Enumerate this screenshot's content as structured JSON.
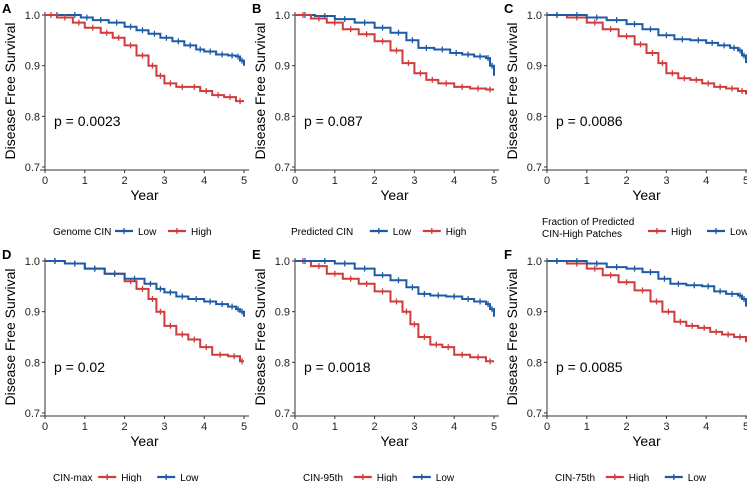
{
  "figure": {
    "colors": {
      "low": "#1f5aa6",
      "high": "#d13b3b"
    }
  },
  "chart_data": [
    {
      "type": "line",
      "panel": "A",
      "title": "",
      "xlabel": "Year",
      "ylabel": "Disease Free Survival",
      "xlim": [
        0,
        5
      ],
      "ylim": [
        0.7,
        1.0
      ],
      "xticks": [
        "0",
        "1",
        "2",
        "3",
        "4",
        "5"
      ],
      "yticks": [
        "0.7",
        "0.8",
        "0.9",
        "1.0"
      ],
      "p_value": "p = 0.0023",
      "legend_title": "Genome CIN",
      "series": [
        {
          "name": "Low",
          "color": "#1f5aa6",
          "x": [
            0,
            0.6,
            0.9,
            1.2,
            1.6,
            2.0,
            2.3,
            2.6,
            2.9,
            3.2,
            3.5,
            3.8,
            4.0,
            4.3,
            4.6,
            4.8,
            4.9,
            5.0
          ],
          "y": [
            1.0,
            1.0,
            0.995,
            0.99,
            0.985,
            0.977,
            0.97,
            0.963,
            0.955,
            0.948,
            0.94,
            0.932,
            0.928,
            0.922,
            0.92,
            0.918,
            0.91,
            0.9
          ]
        },
        {
          "name": "High",
          "color": "#d13b3b",
          "x": [
            0,
            0.3,
            0.7,
            1.0,
            1.4,
            1.7,
            2.0,
            2.3,
            2.6,
            2.8,
            3.0,
            3.3,
            3.6,
            3.9,
            4.2,
            4.5,
            4.8,
            5.0
          ],
          "y": [
            1.0,
            0.995,
            0.985,
            0.975,
            0.965,
            0.955,
            0.94,
            0.92,
            0.9,
            0.88,
            0.865,
            0.858,
            0.858,
            0.85,
            0.842,
            0.838,
            0.83,
            0.83
          ]
        }
      ]
    },
    {
      "type": "line",
      "panel": "B",
      "title": "",
      "xlabel": "Year",
      "ylabel": "Disease Free Survival",
      "xlim": [
        0,
        5
      ],
      "ylim": [
        0.7,
        1.0
      ],
      "xticks": [
        "0",
        "1",
        "2",
        "3",
        "4",
        "5"
      ],
      "yticks": [
        "0.7",
        "0.8",
        "0.9",
        "1.0"
      ],
      "p_value": "p = 0.087",
      "legend_title": "Predicted CIN",
      "series": [
        {
          "name": "Low",
          "color": "#1f5aa6",
          "x": [
            0,
            0.5,
            1.0,
            1.5,
            2.0,
            2.4,
            2.8,
            3.1,
            3.5,
            3.9,
            4.2,
            4.5,
            4.8,
            4.9,
            5.0
          ],
          "y": [
            1.0,
            0.998,
            0.992,
            0.985,
            0.975,
            0.965,
            0.95,
            0.935,
            0.932,
            0.925,
            0.922,
            0.918,
            0.915,
            0.9,
            0.88
          ]
        },
        {
          "name": "High",
          "color": "#d13b3b",
          "x": [
            0,
            0.4,
            0.8,
            1.2,
            1.6,
            2.0,
            2.4,
            2.7,
            3.0,
            3.3,
            3.6,
            4.0,
            4.4,
            4.8,
            5.0
          ],
          "y": [
            1.0,
            0.993,
            0.985,
            0.972,
            0.962,
            0.948,
            0.93,
            0.905,
            0.885,
            0.872,
            0.865,
            0.858,
            0.855,
            0.853,
            0.853
          ]
        }
      ]
    },
    {
      "type": "line",
      "panel": "C",
      "title": "",
      "xlabel": "Year",
      "ylabel": "Disease Free Survival",
      "xlim": [
        0,
        5
      ],
      "ylim": [
        0.7,
        1.0
      ],
      "xticks": [
        "0",
        "1",
        "2",
        "3",
        "4",
        "5"
      ],
      "yticks": [
        "0.7",
        "0.8",
        "0.9",
        "1.0"
      ],
      "p_value": "p = 0.0086",
      "legend_title": "Fraction of Predicted CIN-High Patches",
      "legend_title_lines": [
        "Fraction of Predicted",
        "CIN-High Patches"
      ],
      "series": [
        {
          "name": "High",
          "color": "#d13b3b",
          "x": [
            0,
            0.5,
            1.0,
            1.4,
            1.8,
            2.2,
            2.5,
            2.8,
            3.0,
            3.3,
            3.6,
            3.9,
            4.2,
            4.5,
            4.8,
            5.0
          ],
          "y": [
            1.0,
            0.995,
            0.985,
            0.972,
            0.958,
            0.942,
            0.925,
            0.905,
            0.885,
            0.875,
            0.872,
            0.865,
            0.858,
            0.855,
            0.85,
            0.843
          ]
        },
        {
          "name": "Low",
          "color": "#1f5aa6",
          "x": [
            0,
            0.5,
            1.0,
            1.5,
            2.0,
            2.4,
            2.8,
            3.2,
            3.6,
            4.0,
            4.3,
            4.6,
            4.8,
            4.9,
            5.0
          ],
          "y": [
            1.0,
            1.0,
            0.995,
            0.99,
            0.982,
            0.972,
            0.96,
            0.952,
            0.95,
            0.945,
            0.94,
            0.935,
            0.93,
            0.92,
            0.905
          ]
        }
      ]
    },
    {
      "type": "line",
      "panel": "D",
      "title": "",
      "xlabel": "Year",
      "ylabel": "Disease Free Survival",
      "xlim": [
        0,
        5
      ],
      "ylim": [
        0.7,
        1.0
      ],
      "xticks": [
        "0",
        "1",
        "2",
        "3",
        "4",
        "5"
      ],
      "yticks": [
        "0.7",
        "0.8",
        "0.9",
        "1.0"
      ],
      "p_value": "p = 0.02",
      "legend_title": "CIN-max",
      "series": [
        {
          "name": "High",
          "color": "#d13b3b",
          "x": [
            0,
            0.5,
            1.0,
            1.5,
            2.0,
            2.3,
            2.6,
            2.8,
            3.0,
            3.3,
            3.6,
            3.9,
            4.2,
            4.6,
            4.9,
            5.0
          ],
          "y": [
            1.0,
            0.995,
            0.985,
            0.975,
            0.96,
            0.945,
            0.925,
            0.9,
            0.872,
            0.855,
            0.845,
            0.83,
            0.815,
            0.812,
            0.802,
            0.802
          ]
        },
        {
          "name": "Low",
          "color": "#1f5aa6",
          "x": [
            0,
            0.5,
            1.0,
            1.5,
            2.0,
            2.5,
            2.8,
            3.0,
            3.3,
            3.6,
            4.0,
            4.3,
            4.6,
            4.8,
            4.9,
            5.0
          ],
          "y": [
            1.0,
            0.995,
            0.985,
            0.975,
            0.965,
            0.955,
            0.945,
            0.938,
            0.93,
            0.925,
            0.92,
            0.915,
            0.91,
            0.905,
            0.9,
            0.89
          ]
        }
      ]
    },
    {
      "type": "line",
      "panel": "E",
      "title": "",
      "xlabel": "Year",
      "ylabel": "Disease Free Survival",
      "xlim": [
        0,
        5
      ],
      "ylim": [
        0.7,
        1.0
      ],
      "xticks": [
        "0",
        "1",
        "2",
        "3",
        "4",
        "5"
      ],
      "yticks": [
        "0.7",
        "0.8",
        "0.9",
        "1.0"
      ],
      "p_value": "p = 0.0018",
      "legend_title": "CIN-95th",
      "series": [
        {
          "name": "High",
          "color": "#d13b3b",
          "x": [
            0,
            0.4,
            0.8,
            1.2,
            1.6,
            2.0,
            2.4,
            2.7,
            2.9,
            3.1,
            3.4,
            3.7,
            4.0,
            4.4,
            4.8,
            5.0
          ],
          "y": [
            1.0,
            0.99,
            0.975,
            0.965,
            0.955,
            0.94,
            0.92,
            0.9,
            0.875,
            0.85,
            0.835,
            0.83,
            0.815,
            0.81,
            0.802,
            0.802
          ]
        },
        {
          "name": "Low",
          "color": "#1f5aa6",
          "x": [
            0,
            0.5,
            1.0,
            1.5,
            2.0,
            2.4,
            2.8,
            3.1,
            3.4,
            3.8,
            4.2,
            4.5,
            4.8,
            4.9,
            5.0
          ],
          "y": [
            1.0,
            1.0,
            0.995,
            0.985,
            0.972,
            0.962,
            0.948,
            0.935,
            0.932,
            0.93,
            0.925,
            0.92,
            0.915,
            0.905,
            0.89
          ]
        }
      ]
    },
    {
      "type": "line",
      "panel": "F",
      "title": "",
      "xlabel": "Year",
      "ylabel": "Disease Free Survival",
      "xlim": [
        0,
        5
      ],
      "ylim": [
        0.7,
        1.0
      ],
      "xticks": [
        "0",
        "1",
        "2",
        "3",
        "4",
        "5"
      ],
      "yticks": [
        "0.7",
        "0.8",
        "0.9",
        "1.0"
      ],
      "p_value": "p = 0.0085",
      "legend_title": "CIN-75th",
      "series": [
        {
          "name": "High",
          "color": "#d13b3b",
          "x": [
            0,
            0.5,
            1.0,
            1.4,
            1.8,
            2.2,
            2.6,
            2.9,
            3.2,
            3.5,
            3.8,
            4.1,
            4.4,
            4.7,
            5.0
          ],
          "y": [
            1.0,
            0.995,
            0.985,
            0.972,
            0.958,
            0.942,
            0.92,
            0.9,
            0.88,
            0.872,
            0.868,
            0.86,
            0.855,
            0.85,
            0.84
          ]
        },
        {
          "name": "Low",
          "color": "#1f5aa6",
          "x": [
            0,
            0.5,
            1.0,
            1.5,
            2.0,
            2.4,
            2.8,
            3.1,
            3.5,
            3.9,
            4.2,
            4.5,
            4.8,
            4.9,
            5.0
          ],
          "y": [
            1.0,
            1.0,
            0.995,
            0.988,
            0.985,
            0.978,
            0.965,
            0.955,
            0.952,
            0.95,
            0.94,
            0.935,
            0.932,
            0.925,
            0.91
          ]
        }
      ]
    }
  ]
}
